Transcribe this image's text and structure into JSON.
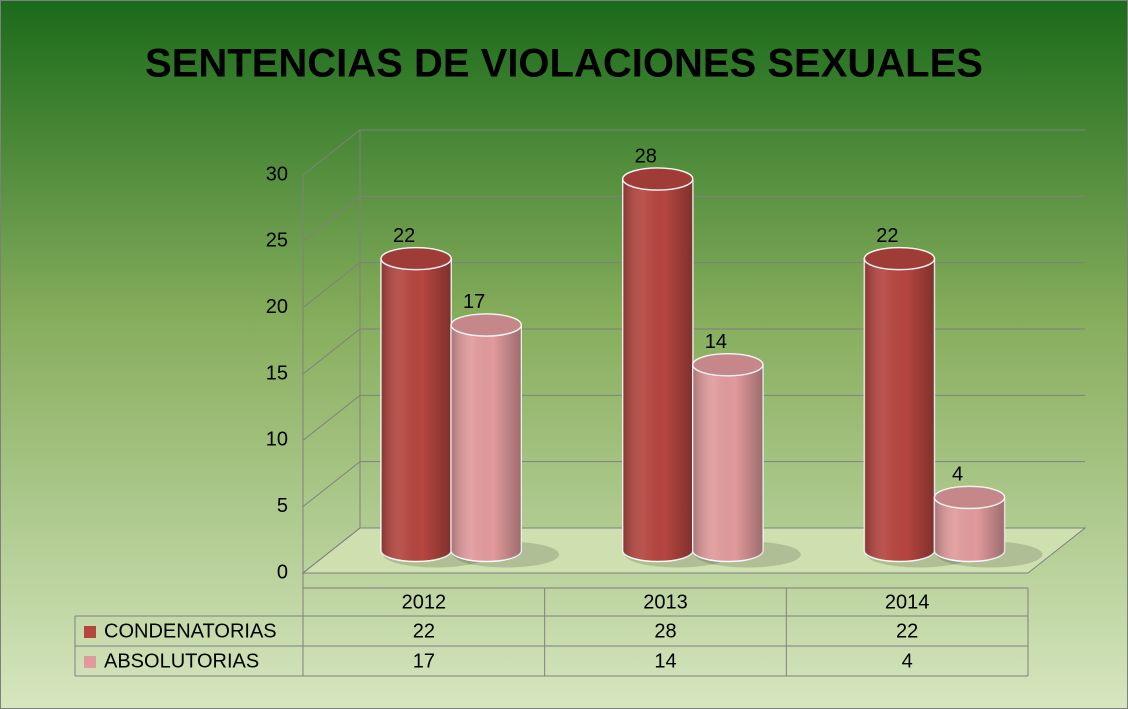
{
  "chart_data": {
    "type": "bar3d",
    "title": "SENTENCIAS DE VIOLACIONES SEXUALES",
    "categories": [
      "2012",
      "2013",
      "2014"
    ],
    "series": [
      {
        "name": "CONDENATORIAS",
        "color": "#b5453f",
        "values": [
          22,
          28,
          22
        ]
      },
      {
        "name": "ABSOLUTORIAS",
        "color": "#e19a9c",
        "values": [
          17,
          14,
          4
        ]
      }
    ],
    "ylim": [
      0,
      30
    ],
    "yticks": [
      0,
      5,
      10,
      15,
      20,
      25,
      30
    ],
    "grid": true,
    "data_table": true
  }
}
